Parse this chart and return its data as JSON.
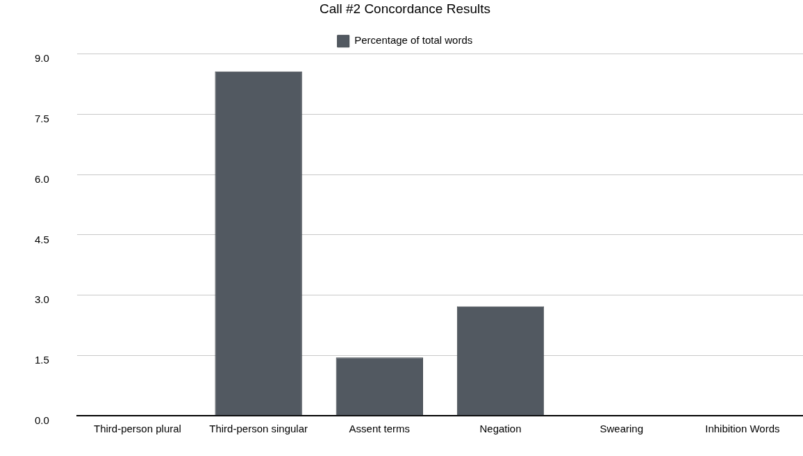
{
  "chart_data": {
    "type": "bar",
    "title": "Call #2 Concordance Results",
    "categories": [
      "Third-person plural",
      "Third-person singular",
      "Assent terms",
      "Negation",
      "Swearing",
      "Inhibition Words"
    ],
    "series": [
      {
        "name": "Percentage of total words",
        "color": "#525961",
        "values": [
          0,
          8.57,
          1.45,
          2.72,
          0,
          0
        ]
      }
    ],
    "ylim": [
      0,
      9
    ],
    "yticks": [
      {
        "value": 0,
        "label": "0.0"
      },
      {
        "value": 1.5,
        "label": "1.5"
      },
      {
        "value": 3,
        "label": "3.0"
      },
      {
        "value": 4.5,
        "label": "4.5"
      },
      {
        "value": 6,
        "label": "6.0"
      },
      {
        "value": 7.5,
        "label": "7.5"
      },
      {
        "value": 9,
        "label": "9.0"
      }
    ],
    "grid": "y",
    "legend": "top"
  }
}
